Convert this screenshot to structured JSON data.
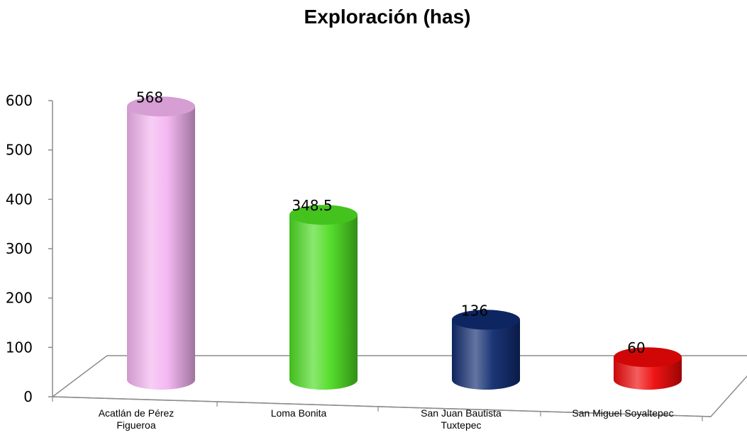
{
  "chart_data": {
    "type": "bar",
    "title": "Exploración (has)",
    "categories": [
      [
        "Acatlán de Pérez",
        "Figueroa"
      ],
      [
        "Loma Bonita"
      ],
      [
        "San Juan Bautista",
        "Tuxtepec"
      ],
      [
        "San Miguel Soyaltepec"
      ]
    ],
    "values": [
      568,
      348.5,
      136,
      60
    ],
    "data_labels": [
      "568",
      "348.5",
      "136",
      "60"
    ],
    "colors": [
      "#f3b3f0",
      "#4ddc22",
      "#0f2a6e",
      "#ee0808"
    ],
    "ylim": [
      0,
      600
    ],
    "yticks": [
      "0",
      "100",
      "200",
      "300",
      "400",
      "500",
      "600"
    ],
    "bar_shape": "cylinder-3d",
    "grid": false,
    "legend": "none"
  }
}
